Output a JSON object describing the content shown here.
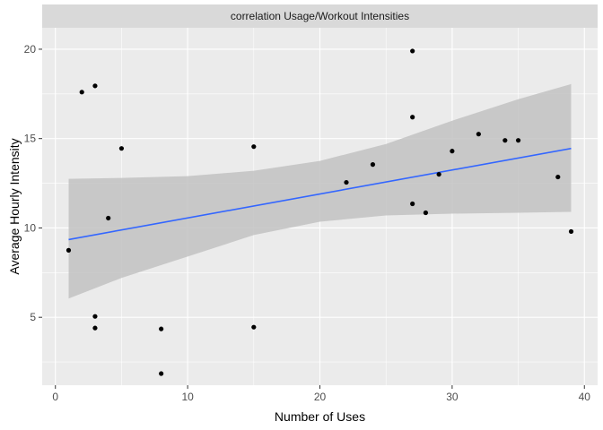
{
  "chart_data": {
    "type": "scatter",
    "title": "correlation Usage/Workout Intensities",
    "xlabel": "Number of Uses",
    "ylabel": "Average Hourly Intensity",
    "xlim": [
      -1,
      41
    ],
    "ylim": [
      1.2,
      21.2
    ],
    "x_ticks": [
      0,
      10,
      20,
      30,
      40
    ],
    "y_ticks": [
      5,
      10,
      15,
      20
    ],
    "grid": true,
    "colors": {
      "panel": "#ebebeb",
      "strip": "#d9d9d9",
      "grid": "#ffffff",
      "points": "#000000",
      "trend_line": "#3366ff",
      "confidence_band": "#c2c2c2"
    },
    "points": [
      {
        "x": 1,
        "y": 8.75
      },
      {
        "x": 2,
        "y": 17.6
      },
      {
        "x": 3,
        "y": 17.95
      },
      {
        "x": 3,
        "y": 5.05
      },
      {
        "x": 3,
        "y": 4.4
      },
      {
        "x": 4,
        "y": 10.55
      },
      {
        "x": 5,
        "y": 14.45
      },
      {
        "x": 8,
        "y": 4.35
      },
      {
        "x": 8,
        "y": 1.85
      },
      {
        "x": 15,
        "y": 14.55
      },
      {
        "x": 15,
        "y": 4.45
      },
      {
        "x": 22,
        "y": 12.55
      },
      {
        "x": 24,
        "y": 13.55
      },
      {
        "x": 27,
        "y": 19.9
      },
      {
        "x": 27,
        "y": 16.2
      },
      {
        "x": 27,
        "y": 11.35
      },
      {
        "x": 28,
        "y": 10.85
      },
      {
        "x": 29,
        "y": 13.0
      },
      {
        "x": 30,
        "y": 14.3
      },
      {
        "x": 32,
        "y": 15.25
      },
      {
        "x": 34,
        "y": 14.9
      },
      {
        "x": 35,
        "y": 14.9
      },
      {
        "x": 38,
        "y": 12.85
      },
      {
        "x": 39,
        "y": 9.8
      }
    ],
    "trend": {
      "method": "linear",
      "x": [
        1,
        39
      ],
      "y": [
        9.35,
        14.45
      ]
    },
    "confidence_band": [
      {
        "x": 1,
        "lower": 6.05,
        "upper": 12.75
      },
      {
        "x": 5,
        "lower": 7.2,
        "upper": 12.8
      },
      {
        "x": 10,
        "lower": 8.4,
        "upper": 12.9
      },
      {
        "x": 15,
        "lower": 9.6,
        "upper": 13.2
      },
      {
        "x": 20,
        "lower": 10.35,
        "upper": 13.75
      },
      {
        "x": 25,
        "lower": 10.7,
        "upper": 14.7
      },
      {
        "x": 30,
        "lower": 10.8,
        "upper": 16.0
      },
      {
        "x": 35,
        "lower": 10.85,
        "upper": 17.2
      },
      {
        "x": 39,
        "lower": 10.9,
        "upper": 18.05
      }
    ]
  }
}
